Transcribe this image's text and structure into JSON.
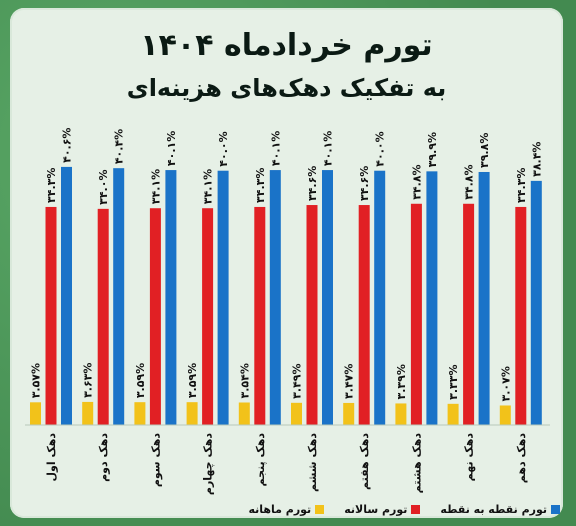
{
  "title": "تورم خردادماه ۱۴۰۴",
  "subtitle": "به تفکیک دهک‌های هزینه‌ای",
  "colors": {
    "monthly": "#f2c21a",
    "annual": "#e12024",
    "point": "#1a73c8"
  },
  "legend": {
    "point": "تورم نقطه به نقطه",
    "annual": "تورم سالانه",
    "monthly": "تورم ماهانه"
  },
  "chart_data": {
    "type": "bar",
    "title": "تورم خردادماه ۱۴۰۴",
    "subtitle": "به تفکیک دهک‌های هزینه‌ای",
    "categories": [
      "دهک اول",
      "دهک دوم",
      "دهک سوم",
      "دهک چهارم",
      "دهک پنجم",
      "دهک ششم",
      "دهک هفتم",
      "دهک هشتم",
      "دهک نهم",
      "دهک دهم"
    ],
    "series": [
      {
        "name": "تورم ماهانه",
        "values": [
          3.57,
          3.63,
          3.59,
          3.59,
          3.54,
          3.49,
          3.47,
          3.39,
          3.33,
          3.07
        ],
        "labels": [
          "۳.۵۷%",
          "۳.۶۳%",
          "۳.۵۹%",
          "۳.۵۹%",
          "۳.۵۴%",
          "۳.۴۹%",
          "۳.۴۷%",
          "۳.۳۹%",
          "۳.۳۳%",
          "۳.۰۷%"
        ]
      },
      {
        "name": "تورم سالانه",
        "values": [
          34.3,
          34.0,
          34.1,
          34.1,
          34.3,
          34.6,
          34.6,
          34.8,
          34.8,
          34.3
        ],
        "labels": [
          "۳۴.۳%",
          "۳۴.۰%",
          "۳۴.۱%",
          "۳۴.۱%",
          "۳۴.۳%",
          "۳۴.۶%",
          "۳۴.۶%",
          "۳۴.۸%",
          "۳۴.۸%",
          "۳۴.۳%"
        ]
      },
      {
        "name": "تورم نقطه به نقطه",
        "values": [
          40.6,
          40.4,
          40.1,
          40.0,
          40.1,
          40.1,
          40.0,
          39.9,
          39.8,
          38.4
        ],
        "labels": [
          "۴۰.۶%",
          "۴۰.۴%",
          "۴۰.۱%",
          "۴۰.۰%",
          "۴۰.۱%",
          "۴۰.۱%",
          "۴۰.۰%",
          "۳۹.۹%",
          "۳۹.۸%",
          "۳۸.۴%"
        ]
      }
    ],
    "ylim": [
      0,
      42
    ],
    "grid": false,
    "legend_position": "bottom"
  }
}
